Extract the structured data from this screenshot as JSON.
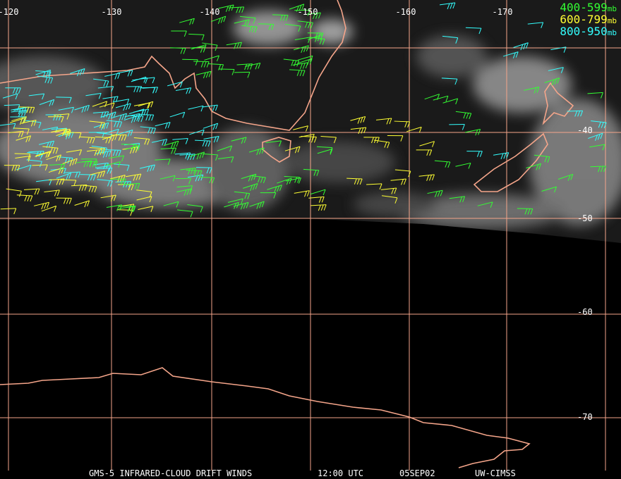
{
  "longitude_labels": [
    "-120",
    "-130",
    "-140",
    "-150",
    "-160",
    "-170"
  ],
  "latitude_labels": [
    "-40",
    "-50",
    "-60",
    "-70"
  ],
  "legend": [
    {
      "range": "400-599",
      "unit": "mb"
    },
    {
      "range": "600-799",
      "unit": "mb"
    },
    {
      "range": "800-950",
      "unit": "mb"
    }
  ],
  "footer": {
    "product": "GMS-5 INFRARED-CLOUD DRIFT WINDS",
    "time": "12:00 UTC",
    "date": "05SEP02",
    "source": "UW-CIMSS"
  }
}
